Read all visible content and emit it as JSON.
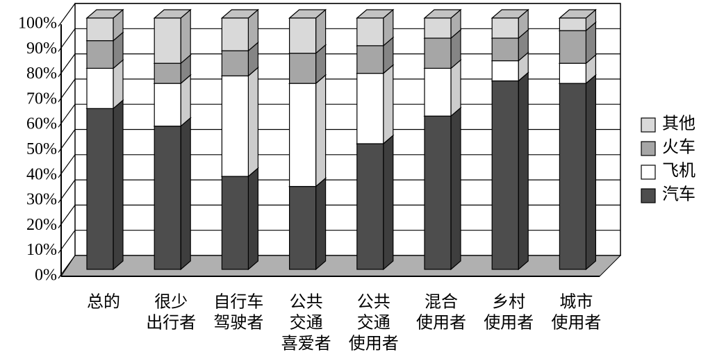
{
  "chart_data": {
    "type": "stacked-bar-3d",
    "categories": [
      [
        "总的"
      ],
      [
        "很少",
        "出行者"
      ],
      [
        "自行车",
        "驾驶者"
      ],
      [
        "公共",
        "交通",
        "喜爱者"
      ],
      [
        "公共",
        "交通",
        "使用者"
      ],
      [
        "混合",
        "使用者"
      ],
      [
        "乡村",
        "使用者"
      ],
      [
        "城市",
        "使用者"
      ]
    ],
    "series": [
      {
        "name": "汽车",
        "color": "#4d4d4d",
        "values": [
          64,
          57,
          37,
          33,
          50,
          61,
          75,
          74
        ]
      },
      {
        "name": "飞机",
        "color": "#ffffff",
        "values": [
          16,
          17,
          40,
          41,
          28,
          19,
          8,
          8
        ]
      },
      {
        "name": "火车",
        "color": "#a6a6a6",
        "values": [
          11,
          8,
          10,
          12,
          11,
          12,
          9,
          13
        ]
      },
      {
        "name": "其他",
        "color": "#d9d9d9",
        "values": [
          9,
          18,
          13,
          14,
          11,
          8,
          8,
          5
        ]
      }
    ],
    "ylim": [
      0,
      100
    ],
    "yticks": [
      {
        "value": 0,
        "label": "0%"
      },
      {
        "value": 10,
        "label": "10%"
      },
      {
        "value": 20,
        "label": "20%"
      },
      {
        "value": 30,
        "label": "30%"
      },
      {
        "value": 40,
        "label": "40%"
      },
      {
        "value": 50,
        "label": "50%"
      },
      {
        "value": 60,
        "label": "60%"
      },
      {
        "value": 70,
        "label": "70%"
      },
      {
        "value": 80,
        "label": "80%"
      },
      {
        "value": 90,
        "label": "90%"
      },
      {
        "value": 100,
        "label": "100%"
      }
    ],
    "grid": true,
    "legend": "right"
  }
}
